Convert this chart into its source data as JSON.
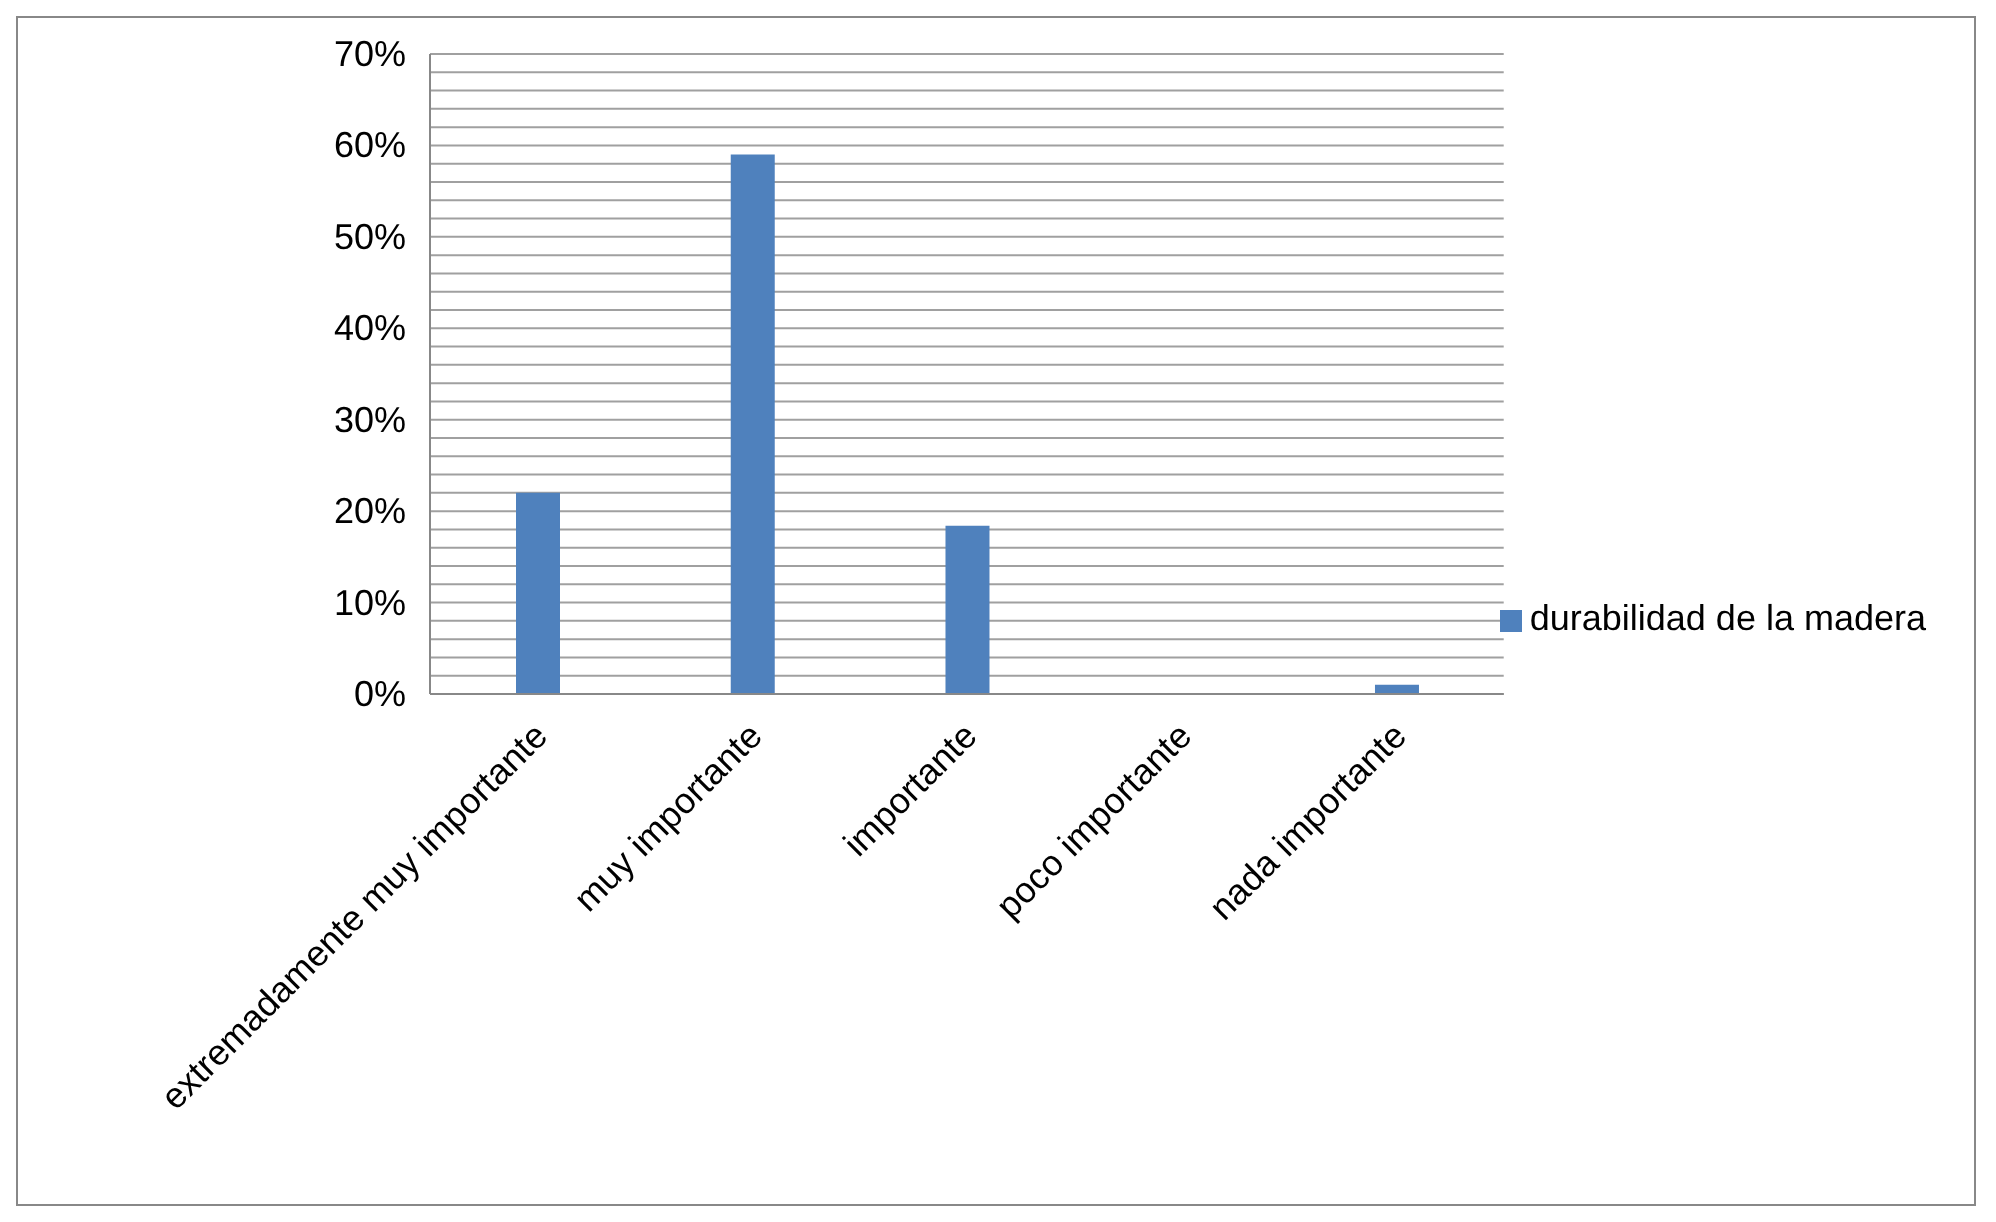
{
  "chart_data": {
    "type": "bar",
    "categories": [
      "extremadamente muy importante",
      "muy importante",
      "importante",
      "poco importante",
      "nada importante"
    ],
    "series": [
      {
        "name": "durabilidad de la madera",
        "color": "#4f81bd",
        "values": [
          22,
          59,
          18.4,
          0,
          1
        ]
      }
    ],
    "ylim": [
      0,
      70
    ],
    "yticks": [
      {
        "value": 0,
        "label": "0%"
      },
      {
        "value": 2,
        "label": null
      },
      {
        "value": 4,
        "label": null
      },
      {
        "value": 6,
        "label": null
      },
      {
        "value": 8,
        "label": null
      },
      {
        "value": 10,
        "label": "10%"
      },
      {
        "value": 12,
        "label": null
      },
      {
        "value": 14,
        "label": null
      },
      {
        "value": 16,
        "label": null
      },
      {
        "value": 18,
        "label": null
      },
      {
        "value": 20,
        "label": "20%"
      },
      {
        "value": 22,
        "label": null
      },
      {
        "value": 24,
        "label": null
      },
      {
        "value": 26,
        "label": null
      },
      {
        "value": 28,
        "label": null
      },
      {
        "value": 30,
        "label": "30%"
      },
      {
        "value": 32,
        "label": null
      },
      {
        "value": 34,
        "label": null
      },
      {
        "value": 36,
        "label": null
      },
      {
        "value": 38,
        "label": null
      },
      {
        "value": 40,
        "label": "40%"
      },
      {
        "value": 42,
        "label": null
      },
      {
        "value": 44,
        "label": null
      },
      {
        "value": 46,
        "label": null
      },
      {
        "value": 48,
        "label": null
      },
      {
        "value": 50,
        "label": "50%"
      },
      {
        "value": 52,
        "label": null
      },
      {
        "value": 54,
        "label": null
      },
      {
        "value": 56,
        "label": null
      },
      {
        "value": 58,
        "label": null
      },
      {
        "value": 60,
        "label": "60%"
      },
      {
        "value": 62,
        "label": null
      },
      {
        "value": 64,
        "label": null
      },
      {
        "value": 66,
        "label": null
      },
      {
        "value": 68,
        "label": null
      },
      {
        "value": 70,
        "label": "70%"
      }
    ],
    "grid": "y",
    "legend": "right"
  }
}
